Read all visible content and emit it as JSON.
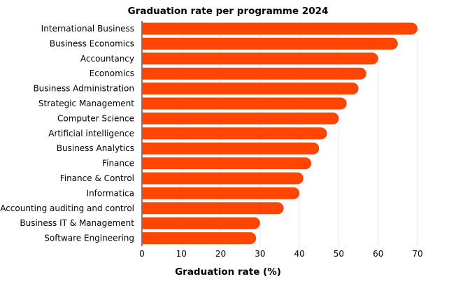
{
  "chart_data": {
    "type": "bar",
    "orientation": "horizontal",
    "title": "Graduation rate per programme 2024",
    "xlabel": "Graduation rate (%)",
    "ylabel": "",
    "xlim": [
      0,
      70
    ],
    "xticks": [
      0,
      10,
      20,
      30,
      40,
      50,
      60,
      70
    ],
    "grid": true,
    "bar_color": "#ff4500",
    "categories": [
      "International Business",
      "Business Economics",
      "Accountancy",
      "Economics",
      "Business Administration",
      "Strategic Management",
      "Computer Science",
      "Artificial intelligence",
      "Business Analytics",
      "Finance",
      "Finance & Control",
      "Informatica",
      "Accounting auditing and control",
      "Business IT & Management",
      "Software Engineering"
    ],
    "values": [
      70,
      65,
      60,
      57,
      55,
      52,
      50,
      47,
      45,
      43,
      41,
      40,
      36,
      30,
      29
    ]
  }
}
